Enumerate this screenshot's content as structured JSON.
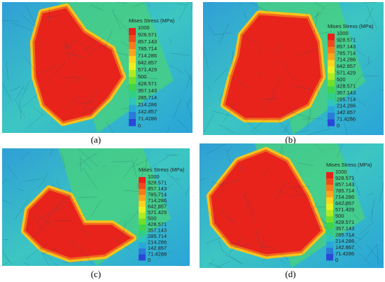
{
  "panels": [
    {
      "caption": "(a)",
      "legend_title": "Mises Stress (MPa)",
      "legend_labels": [
        "1000",
        "928.571",
        "857.143",
        "785.714",
        "714.286",
        "642.857",
        "571.429",
        "500",
        "428.571",
        "357.143",
        "285.714",
        "214.286",
        "142.857",
        "71.4286",
        "0"
      ]
    },
    {
      "caption": "(b)",
      "legend_title": "Mises Stress (MPa)",
      "legend_labels": [
        "1000",
        "928.571",
        "857.143",
        "785.714",
        "714.286",
        "642.857",
        "571.429",
        "500",
        "428.571",
        "357.143",
        "285.714",
        "214.286",
        "142.857",
        "71.4286",
        "0"
      ]
    },
    {
      "caption": "(c)",
      "legend_title": "Mises Stress (MPa)",
      "legend_labels": [
        "1000",
        "928.571",
        "857.143",
        "785.714",
        "714.286",
        "642.857",
        "571.429",
        "500",
        "428.571",
        "357.143",
        "285.714",
        "214.286",
        "142.857",
        "71.4286",
        "0"
      ]
    },
    {
      "caption": "(d)",
      "legend_title": "Mises Stress (MPa)",
      "legend_labels": [
        "1000",
        "928.571",
        "857.143",
        "785.714",
        "714.286",
        "642.857",
        "571.429",
        "500",
        "428.571",
        "357.143",
        "285.714",
        "214.286",
        "142.857",
        "71.4286",
        "0"
      ]
    }
  ]
}
